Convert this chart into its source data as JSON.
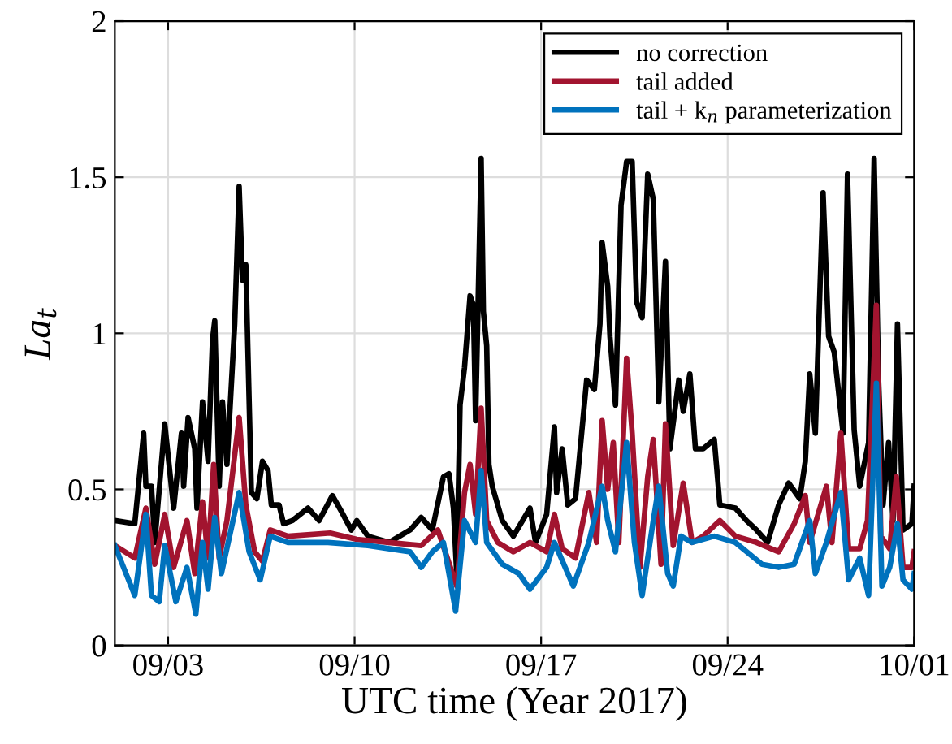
{
  "chart_data": {
    "type": "line",
    "xlabel": "UTC time (Year 2017)",
    "ylabel": "La$_{t}$",
    "legend": "top right",
    "grid": true,
    "line_style": "solid",
    "marker": "none",
    "xlim": [
      "2017-09-01",
      "2017-10-01"
    ],
    "xticks": [
      {
        "value": "2017-09-03",
        "label": "09/03"
      },
      {
        "value": "2017-09-10",
        "label": "09/10"
      },
      {
        "value": "2017-09-17",
        "label": "09/17"
      },
      {
        "value": "2017-09-24",
        "label": "09/24"
      },
      {
        "value": "2017-10-01",
        "label": "10/01"
      }
    ],
    "ylim": [
      0,
      2
    ],
    "yticks": [
      0,
      0.5,
      1,
      1.5,
      2
    ],
    "series": [
      {
        "name": "no correction",
        "color": "#000000",
        "x": [
          "2017-09-01T00:00",
          "2017-09-01T18:00",
          "2017-09-01T21:00",
          "2017-09-02T02:00",
          "2017-09-02T04:00",
          "2017-09-02T09:00",
          "2017-09-02T12:00",
          "2017-09-02T21:00",
          "2017-09-03T05:00",
          "2017-09-03T12:00",
          "2017-09-03T14:00",
          "2017-09-03T18:00",
          "2017-09-04T00:00",
          "2017-09-04T02:00",
          "2017-09-04T07:00",
          "2017-09-04T12:00",
          "2017-09-04T16:00",
          "2017-09-04T18:00",
          "2017-09-04T22:00",
          "2017-09-05T01:00",
          "2017-09-05T05:00",
          "2017-09-05T12:00",
          "2017-09-05T16:00",
          "2017-09-05T19:00",
          "2017-09-05T22:00",
          "2017-09-06T03:00",
          "2017-09-06T08:00",
          "2017-09-06T13:00",
          "2017-09-06T18:00",
          "2017-09-06T21:00",
          "2017-09-07T04:00",
          "2017-09-07T08:00",
          "2017-09-07T16:00",
          "2017-09-08T06:00",
          "2017-09-08T16:00",
          "2017-09-09T04:00",
          "2017-09-09T12:00",
          "2017-09-09T21:00",
          "2017-09-10T02:00",
          "2017-09-10T12:00",
          "2017-09-11T07:00",
          "2017-09-12T02:00",
          "2017-09-12T12:00",
          "2017-09-12T22:00",
          "2017-09-13T08:00",
          "2017-09-13T13:00",
          "2017-09-13T17:00",
          "2017-09-13T20:00",
          "2017-09-13T23:00",
          "2017-09-14T03:00",
          "2017-09-14T08:00",
          "2017-09-14T11:00",
          "2017-09-14T13:00",
          "2017-09-14T18:00",
          "2017-09-14T20:00",
          "2017-09-14T23:00",
          "2017-09-15T01:00",
          "2017-09-15T04:00",
          "2017-09-15T13:00",
          "2017-09-15T23:00",
          "2017-09-16T14:00",
          "2017-09-16T19:00",
          "2017-09-17T05:00",
          "2017-09-17T12:00",
          "2017-09-17T14:00",
          "2017-09-17T19:00",
          "2017-09-18T00:00",
          "2017-09-18T07:00",
          "2017-09-18T17:00",
          "2017-09-19T00:00",
          "2017-09-19T05:00",
          "2017-09-19T07:00",
          "2017-09-19T12:00",
          "2017-09-19T14:00",
          "2017-09-19T19:00",
          "2017-09-20T00:00",
          "2017-09-20T05:00",
          "2017-09-20T10:00",
          "2017-09-20T14:00",
          "2017-09-20T19:00",
          "2017-09-21T00:00",
          "2017-09-21T05:00",
          "2017-09-21T10:00",
          "2017-09-21T16:00",
          "2017-09-21T20:00",
          "2017-09-22T04:00",
          "2017-09-22T08:00",
          "2017-09-22T14:00",
          "2017-09-22T19:00",
          "2017-09-23T02:00",
          "2017-09-23T12:00",
          "2017-09-23T17:00",
          "2017-09-24T07:00",
          "2017-09-24T17:00",
          "2017-09-25T02:00",
          "2017-09-25T12:00",
          "2017-09-25T22:00",
          "2017-09-26T07:00",
          "2017-09-26T17:00",
          "2017-09-26T22:00",
          "2017-09-27T02:00",
          "2017-09-27T07:00",
          "2017-09-27T14:00",
          "2017-09-27T19:00",
          "2017-09-28T00:00",
          "2017-09-28T08:00",
          "2017-09-28T12:00",
          "2017-09-28T18:00",
          "2017-09-28T23:00",
          "2017-09-29T07:00",
          "2017-09-29T12:00",
          "2017-09-29T16:00",
          "2017-09-29T20:00",
          "2017-09-30T01:00",
          "2017-09-30T05:00",
          "2017-09-30T09:00",
          "2017-09-30T14:00",
          "2017-09-30T22:00",
          "2017-10-01T00:00"
        ],
        "values": [
          0.4,
          0.39,
          0.5,
          0.68,
          0.51,
          0.51,
          0.33,
          0.71,
          0.44,
          0.68,
          0.51,
          0.73,
          0.63,
          0.44,
          0.78,
          0.59,
          0.98,
          1.04,
          0.51,
          0.78,
          0.58,
          1.03,
          1.47,
          1.17,
          1.22,
          0.49,
          0.47,
          0.59,
          0.56,
          0.45,
          0.45,
          0.39,
          0.4,
          0.44,
          0.4,
          0.48,
          0.43,
          0.37,
          0.4,
          0.35,
          0.33,
          0.37,
          0.41,
          0.37,
          0.54,
          0.55,
          0.44,
          0.23,
          0.77,
          0.89,
          1.12,
          1.09,
          0.72,
          1.56,
          1.07,
          0.96,
          0.58,
          0.51,
          0.4,
          0.35,
          0.44,
          0.33,
          0.42,
          0.7,
          0.49,
          0.63,
          0.45,
          0.47,
          0.85,
          0.82,
          1.03,
          1.29,
          1.15,
          0.99,
          0.77,
          1.41,
          1.55,
          1.55,
          1.1,
          1.05,
          1.51,
          1.43,
          0.78,
          1.23,
          0.63,
          0.85,
          0.75,
          0.87,
          0.63,
          0.63,
          0.66,
          0.45,
          0.44,
          0.4,
          0.37,
          0.33,
          0.45,
          0.52,
          0.47,
          0.59,
          0.87,
          0.68,
          1.45,
          0.99,
          0.94,
          0.68,
          1.51,
          0.69,
          0.51,
          0.65,
          1.56,
          0.85,
          0.45,
          0.65,
          0.4,
          1.03,
          0.37,
          0.39,
          0.51
        ]
      },
      {
        "name": "tail added",
        "color": "#a2142f",
        "x": [
          "2017-09-01T00:00",
          "2017-09-01T18:00",
          "2017-09-02T04:00",
          "2017-09-02T12:00",
          "2017-09-02T21:00",
          "2017-09-03T05:00",
          "2017-09-03T17:00",
          "2017-09-04T00:00",
          "2017-09-04T07:00",
          "2017-09-04T12:00",
          "2017-09-04T17:00",
          "2017-09-04T22:00",
          "2017-09-05T05:00",
          "2017-09-05T16:00",
          "2017-09-05T22:00",
          "2017-09-06T06:00",
          "2017-09-06T13:00",
          "2017-09-06T20:00",
          "2017-09-07T12:00",
          "2017-09-09T02:00",
          "2017-09-10T02:00",
          "2017-09-11T07:00",
          "2017-09-12T12:00",
          "2017-09-13T03:00",
          "2017-09-13T20:00",
          "2017-09-14T03:00",
          "2017-09-14T08:00",
          "2017-09-14T13:00",
          "2017-09-14T18:00",
          "2017-09-14T23:00",
          "2017-09-15T09:00",
          "2017-09-15T23:00",
          "2017-09-16T14:00",
          "2017-09-17T05:00",
          "2017-09-17T12:00",
          "2017-09-17T19:00",
          "2017-09-18T07:00",
          "2017-09-18T19:00",
          "2017-09-19T02:00",
          "2017-09-19T07:00",
          "2017-09-19T12:00",
          "2017-09-19T17:00",
          "2017-09-19T22:00",
          "2017-09-20T05:00",
          "2017-09-20T10:00",
          "2017-09-20T17:00",
          "2017-09-21T00:00",
          "2017-09-21T05:00",
          "2017-09-21T12:00",
          "2017-09-21T16:00",
          "2017-09-21T23:00",
          "2017-09-22T08:00",
          "2017-09-22T16:00",
          "2017-09-23T02:00",
          "2017-09-23T17:00",
          "2017-09-24T07:00",
          "2017-09-25T02:00",
          "2017-09-25T22:00",
          "2017-09-26T12:00",
          "2017-09-26T22:00",
          "2017-09-27T02:00",
          "2017-09-27T17:00",
          "2017-09-27T22:00",
          "2017-09-28T06:00",
          "2017-09-28T13:00",
          "2017-09-28T23:00",
          "2017-09-29T06:00",
          "2017-09-29T14:00",
          "2017-09-29T18:00",
          "2017-09-30T02:00",
          "2017-09-30T08:00",
          "2017-09-30T14:00",
          "2017-09-30T22:00",
          "2017-10-01T00:00"
        ],
        "values": [
          0.32,
          0.28,
          0.44,
          0.26,
          0.42,
          0.25,
          0.4,
          0.23,
          0.46,
          0.28,
          0.58,
          0.28,
          0.4,
          0.73,
          0.45,
          0.3,
          0.27,
          0.37,
          0.35,
          0.36,
          0.34,
          0.33,
          0.32,
          0.37,
          0.19,
          0.49,
          0.58,
          0.42,
          0.76,
          0.4,
          0.33,
          0.3,
          0.33,
          0.3,
          0.42,
          0.31,
          0.28,
          0.49,
          0.33,
          0.72,
          0.5,
          0.65,
          0.33,
          0.92,
          0.68,
          0.25,
          0.54,
          0.66,
          0.26,
          0.71,
          0.32,
          0.52,
          0.33,
          0.35,
          0.4,
          0.35,
          0.33,
          0.3,
          0.39,
          0.48,
          0.33,
          0.51,
          0.33,
          0.68,
          0.31,
          0.31,
          0.4,
          1.09,
          0.35,
          0.31,
          0.54,
          0.25,
          0.25,
          0.3
        ]
      },
      {
        "name": "tail + k$_{n}$ parameterization",
        "color": "#0072bd",
        "x": [
          "2017-09-01T00:00",
          "2017-09-01T18:00",
          "2017-09-02T04:00",
          "2017-09-02T09:00",
          "2017-09-02T16:00",
          "2017-09-02T21:00",
          "2017-09-03T07:00",
          "2017-09-03T17:00",
          "2017-09-04T01:00",
          "2017-09-04T07:00",
          "2017-09-04T12:00",
          "2017-09-04T18:00",
          "2017-09-05T00:00",
          "2017-09-05T16:00",
          "2017-09-06T01:00",
          "2017-09-06T11:00",
          "2017-09-06T20:00",
          "2017-09-07T12:00",
          "2017-09-09T00:00",
          "2017-09-10T12:00",
          "2017-09-12T02:00",
          "2017-09-12T12:00",
          "2017-09-12T22:00",
          "2017-09-13T08:00",
          "2017-09-13T19:00",
          "2017-09-14T03:00",
          "2017-09-14T13:00",
          "2017-09-14T18:00",
          "2017-09-14T23:00",
          "2017-09-15T13:00",
          "2017-09-16T04:00",
          "2017-09-16T14:00",
          "2017-09-17T05:00",
          "2017-09-17T12:00",
          "2017-09-18T05:00",
          "2017-09-18T19:00",
          "2017-09-19T07:00",
          "2017-09-19T12:00",
          "2017-09-19T19:00",
          "2017-09-20T05:00",
          "2017-09-20T12:00",
          "2017-09-20T19:00",
          "2017-09-21T05:00",
          "2017-09-21T10:00",
          "2017-09-21T18:00",
          "2017-09-21T23:00",
          "2017-09-22T06:00",
          "2017-09-22T16:00",
          "2017-09-23T12:00",
          "2017-09-24T07:00",
          "2017-09-25T07:00",
          "2017-09-25T22:00",
          "2017-09-26T12:00",
          "2017-09-27T02:00",
          "2017-09-27T07:00",
          "2017-09-27T17:00",
          "2017-09-28T06:00",
          "2017-09-28T13:00",
          "2017-09-28T23:00",
          "2017-09-29T07:00",
          "2017-09-29T14:00",
          "2017-09-29T19:00",
          "2017-09-30T02:00",
          "2017-09-30T09:00",
          "2017-09-30T14:00",
          "2017-09-30T22:00",
          "2017-10-01T00:00"
        ],
        "values": [
          0.32,
          0.16,
          0.42,
          0.16,
          0.14,
          0.32,
          0.14,
          0.25,
          0.1,
          0.33,
          0.18,
          0.41,
          0.23,
          0.49,
          0.3,
          0.21,
          0.35,
          0.33,
          0.33,
          0.32,
          0.3,
          0.25,
          0.3,
          0.33,
          0.11,
          0.4,
          0.33,
          0.56,
          0.33,
          0.26,
          0.23,
          0.18,
          0.25,
          0.33,
          0.19,
          0.33,
          0.51,
          0.4,
          0.3,
          0.65,
          0.33,
          0.16,
          0.4,
          0.51,
          0.23,
          0.19,
          0.35,
          0.33,
          0.35,
          0.33,
          0.26,
          0.25,
          0.26,
          0.4,
          0.23,
          0.33,
          0.49,
          0.21,
          0.28,
          0.16,
          0.84,
          0.19,
          0.25,
          0.39,
          0.21,
          0.18,
          0.23
        ]
      }
    ]
  }
}
